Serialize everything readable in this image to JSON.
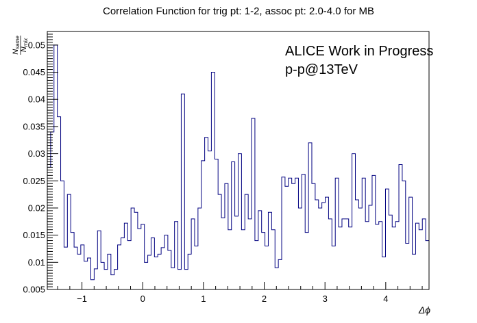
{
  "chart_data": {
    "type": "line",
    "style": "step-histogram",
    "title": "Correlation Function for trig pt: 1-2, assoc pt: 2.0-4.0 for MB",
    "xlabel": "Δϕ",
    "ylabel_numerator": "N",
    "ylabel_numerator_sub": "same",
    "ylabel_denominator": "N",
    "ylabel_denominator_sub": "mix",
    "annotations": [
      "ALICE Work in Progress",
      "p-p@13TeV"
    ],
    "xlim": [
      -1.5708,
      4.7124
    ],
    "ylim": [
      0.005,
      0.0525
    ],
    "x_ticks": [
      -1,
      0,
      1,
      2,
      3,
      4
    ],
    "x_tick_labels": [
      "−1",
      "0",
      "1",
      "2",
      "3",
      "4"
    ],
    "y_ticks": [
      0.005,
      0.01,
      0.015,
      0.02,
      0.025,
      0.03,
      0.035,
      0.04,
      0.045,
      0.05
    ],
    "y_tick_labels": [
      "0.005",
      "0.01",
      "0.015",
      "0.02",
      "0.025",
      "0.03",
      "0.035",
      "0.04",
      "0.045",
      "0.05"
    ],
    "line_color": "#000080",
    "grid": false,
    "legend": "none",
    "series": [
      {
        "values": [
          0.0275,
          0.034,
          0.05,
          0.0368,
          0.025,
          0.0128,
          0.0225,
          0.0155,
          0.0128,
          0.0115,
          0.0132,
          0.0102,
          0.0108,
          0.0068,
          0.0088,
          0.0158,
          0.01,
          0.0087,
          0.0115,
          0.0077,
          0.0087,
          0.0132,
          0.0145,
          0.0172,
          0.014,
          0.02,
          0.0192,
          0.0162,
          0.017,
          0.01,
          0.0113,
          0.0145,
          0.011,
          0.0115,
          0.0127,
          0.015,
          0.0122,
          0.009,
          0.0175,
          0.0087,
          0.041,
          0.0087,
          0.0115,
          0.018,
          0.013,
          0.02,
          0.0287,
          0.033,
          0.0305,
          0.045,
          0.029,
          0.0225,
          0.0182,
          0.0245,
          0.016,
          0.0285,
          0.0185,
          0.03,
          0.016,
          0.0225,
          0.018,
          0.0365,
          0.014,
          0.0195,
          0.0155,
          0.013,
          0.0192,
          0.016,
          0.009,
          0.0105,
          0.0257,
          0.024,
          0.0255,
          0.0245,
          0.0255,
          0.02,
          0.0262,
          0.0155,
          0.032,
          0.0245,
          0.0215,
          0.02,
          0.021,
          0.022,
          0.018,
          0.013,
          0.0255,
          0.0165,
          0.018,
          0.018,
          0.0165,
          0.03,
          0.0215,
          0.02,
          0.0255,
          0.0175,
          0.0205,
          0.026,
          0.017,
          0.0175,
          0.011,
          0.0235,
          0.0187,
          0.0165,
          0.0175,
          0.028,
          0.025,
          0.0135,
          0.022,
          0.0115,
          0.0172,
          0.016,
          0.018,
          0.014
        ]
      }
    ]
  }
}
